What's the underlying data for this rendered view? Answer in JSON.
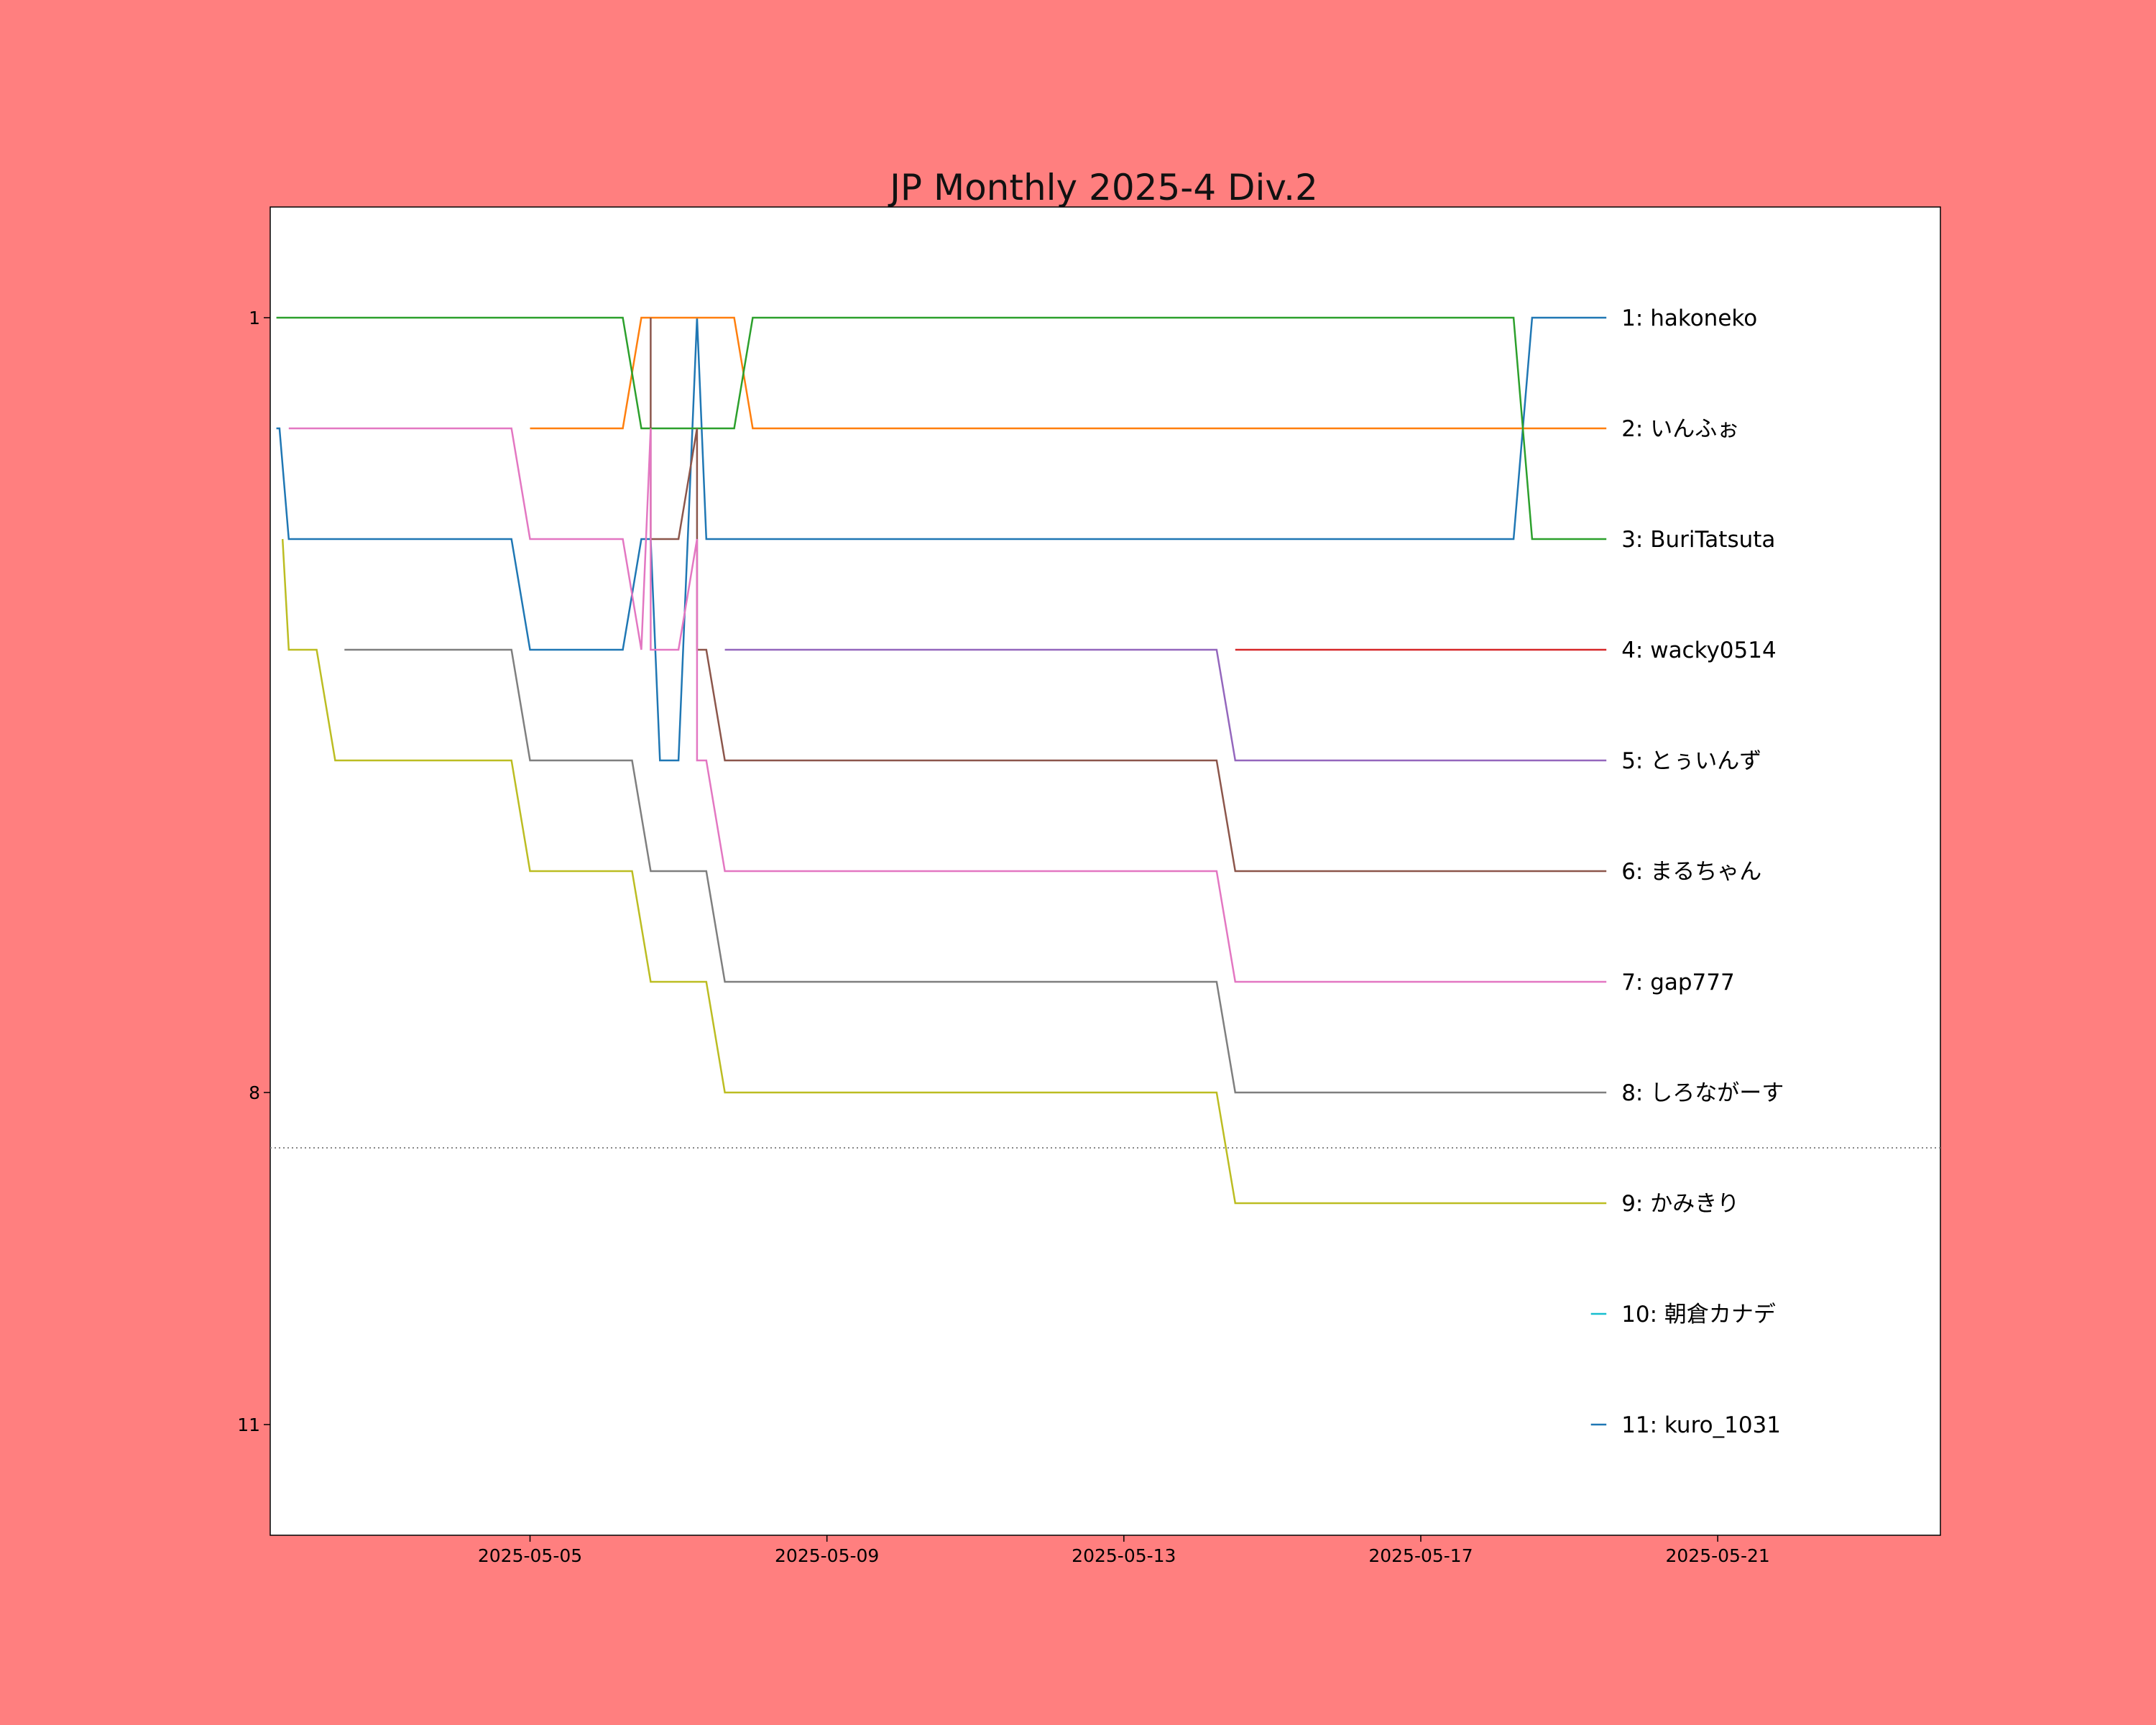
{
  "chart_data": {
    "type": "line",
    "title": "JP Monthly 2025-4 Div.2",
    "xlabel": "",
    "ylabel": "",
    "x_axis": {
      "type": "date",
      "range": [
        "2025-05-01T12:00",
        "2025-05-24T00:00"
      ],
      "ticks": [
        "2025-05-05",
        "2025-05-09",
        "2025-05-13",
        "2025-05-17",
        "2025-05-21"
      ]
    },
    "y_axis": {
      "inverted": true,
      "range": [
        0,
        12
      ],
      "ticks": [
        1,
        8,
        11
      ]
    },
    "cutoff_line": {
      "rank": 8.5,
      "style": "dotted"
    },
    "grid": false,
    "series": [
      {
        "name": "1: hakoneko",
        "color": "#1f77b4",
        "points": [
          [
            "2025-05-01T14:00",
            2
          ],
          [
            "2025-05-01T15:00",
            2
          ],
          [
            "2025-05-01T18:00",
            3
          ],
          [
            "2025-05-04T18:00",
            3
          ],
          [
            "2025-05-05T00:00",
            4
          ],
          [
            "2025-05-06T06:00",
            4
          ],
          [
            "2025-05-06T12:00",
            3
          ],
          [
            "2025-05-06T15:00",
            3
          ],
          [
            "2025-05-06T18:00",
            5
          ],
          [
            "2025-05-07T00:00",
            5
          ],
          [
            "2025-05-07T06:00",
            1
          ],
          [
            "2025-05-07T09:00",
            3
          ],
          [
            "2025-05-18T06:00",
            3
          ],
          [
            "2025-05-18T12:00",
            1
          ],
          [
            "2025-05-19T12:00",
            1
          ]
        ]
      },
      {
        "name": "2: いんふぉ",
        "color": "#ff7f0e",
        "points": [
          [
            "2025-05-05T00:00",
            2
          ],
          [
            "2025-05-06T06:00",
            2
          ],
          [
            "2025-05-06T12:00",
            1
          ],
          [
            "2025-05-07T18:00",
            1
          ],
          [
            "2025-05-08T00:00",
            2
          ],
          [
            "2025-05-19T12:00",
            2
          ]
        ]
      },
      {
        "name": "3: BuriTatsuta",
        "color": "#2ca02c",
        "points": [
          [
            "2025-05-01T14:00",
            1
          ],
          [
            "2025-05-06T06:00",
            1
          ],
          [
            "2025-05-06T12:00",
            2
          ],
          [
            "2025-05-07T18:00",
            2
          ],
          [
            "2025-05-08T00:00",
            1
          ],
          [
            "2025-05-18T06:00",
            1
          ],
          [
            "2025-05-18T12:00",
            3
          ],
          [
            "2025-05-19T12:00",
            3
          ]
        ]
      },
      {
        "name": "4: wacky0514",
        "color": "#d62728",
        "points": [
          [
            "2025-05-14T12:00",
            4
          ],
          [
            "2025-05-19T12:00",
            4
          ]
        ]
      },
      {
        "name": "5: とぅいんず",
        "color": "#9467bd",
        "points": [
          [
            "2025-05-07T15:00",
            4
          ],
          [
            "2025-05-14T06:00",
            4
          ],
          [
            "2025-05-14T12:00",
            5
          ],
          [
            "2025-05-19T12:00",
            5
          ]
        ]
      },
      {
        "name": "6: まるちゃん",
        "color": "#8c564b",
        "points": [
          [
            "2025-05-06T15:00",
            1
          ],
          [
            "2025-05-06T15:00",
            3
          ],
          [
            "2025-05-07T00:00",
            3
          ],
          [
            "2025-05-07T06:00",
            2
          ],
          [
            "2025-05-07T06:00",
            4
          ],
          [
            "2025-05-07T09:00",
            4
          ],
          [
            "2025-05-07T15:00",
            5
          ],
          [
            "2025-05-14T06:00",
            5
          ],
          [
            "2025-05-14T12:00",
            6
          ],
          [
            "2025-05-19T12:00",
            6
          ]
        ]
      },
      {
        "name": "7: gap777",
        "color": "#e377c2",
        "points": [
          [
            "2025-05-01T18:00",
            2
          ],
          [
            "2025-05-04T18:00",
            2
          ],
          [
            "2025-05-05T00:00",
            3
          ],
          [
            "2025-05-06T06:00",
            3
          ],
          [
            "2025-05-06T12:00",
            4
          ],
          [
            "2025-05-06T15:00",
            2
          ],
          [
            "2025-05-06T15:00",
            4
          ],
          [
            "2025-05-07T00:00",
            4
          ],
          [
            "2025-05-07T06:00",
            3
          ],
          [
            "2025-05-07T06:00",
            5
          ],
          [
            "2025-05-07T09:00",
            5
          ],
          [
            "2025-05-07T15:00",
            6
          ],
          [
            "2025-05-14T06:00",
            6
          ],
          [
            "2025-05-14T12:00",
            7
          ],
          [
            "2025-05-19T12:00",
            7
          ]
        ]
      },
      {
        "name": "8: しろながーす",
        "color": "#7f7f7f",
        "points": [
          [
            "2025-05-02T12:00",
            4
          ],
          [
            "2025-05-04T18:00",
            4
          ],
          [
            "2025-05-05T00:00",
            5
          ],
          [
            "2025-05-06T09:00",
            5
          ],
          [
            "2025-05-06T15:00",
            6
          ],
          [
            "2025-05-07T09:00",
            6
          ],
          [
            "2025-05-07T15:00",
            7
          ],
          [
            "2025-05-14T06:00",
            7
          ],
          [
            "2025-05-14T12:00",
            8
          ],
          [
            "2025-05-19T12:00",
            8
          ]
        ]
      },
      {
        "name": "9: かみきり",
        "color": "#bcbd22",
        "points": [
          [
            "2025-05-01T16:00",
            3
          ],
          [
            "2025-05-01T18:00",
            4
          ],
          [
            "2025-05-02T03:00",
            4
          ],
          [
            "2025-05-02T09:00",
            5
          ],
          [
            "2025-05-04T18:00",
            5
          ],
          [
            "2025-05-05T00:00",
            6
          ],
          [
            "2025-05-06T09:00",
            6
          ],
          [
            "2025-05-06T15:00",
            7
          ],
          [
            "2025-05-07T09:00",
            7
          ],
          [
            "2025-05-07T15:00",
            8
          ],
          [
            "2025-05-14T06:00",
            8
          ],
          [
            "2025-05-14T12:00",
            9
          ],
          [
            "2025-05-19T12:00",
            9
          ]
        ]
      },
      {
        "name": "10: 朝倉カナデ",
        "color": "#17becf",
        "points": [
          [
            "2025-05-19T07:00",
            10
          ],
          [
            "2025-05-19T12:00",
            10
          ]
        ]
      },
      {
        "name": "11: kuro_1031",
        "color": "#1f77b4",
        "points": [
          [
            "2025-05-19T07:00",
            11
          ],
          [
            "2025-05-19T12:00",
            11
          ]
        ]
      }
    ]
  }
}
